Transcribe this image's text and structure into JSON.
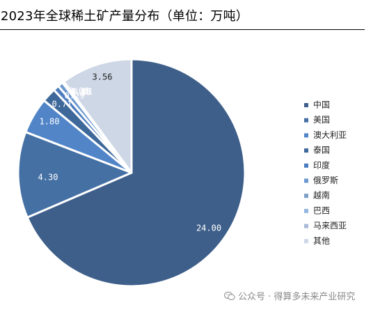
{
  "title": "2023年全球稀土矿产量分布（单位：万吨）",
  "watermark": "公众号 · 得算多未来产业研究",
  "watermark_icon": "wechat-icon",
  "chart_data": {
    "type": "pie",
    "title": "2023年全球稀土矿产量分布（单位：万吨）",
    "unit": "万吨",
    "start_angle_deg": 0,
    "direction": "clockwise",
    "legend_position": "right",
    "slices": [
      {
        "name": "中国",
        "value": 24.0,
        "label": "24.00",
        "color": "#3e5f8a"
      },
      {
        "name": "美国",
        "value": 4.3,
        "label": "4.30",
        "color": "#4470a4"
      },
      {
        "name": "澳大利亚",
        "value": 1.8,
        "label": "1.80",
        "color": "#5185c8"
      },
      {
        "name": "泰国",
        "value": 0.71,
        "label": "0.71",
        "color": "#3f689a"
      },
      {
        "name": "印度",
        "value": 0.29,
        "label": "0.29",
        "color": "#4d7dbf"
      },
      {
        "name": "俄罗斯",
        "value": 0.26,
        "label": "0.26",
        "color": "#6b98cf"
      },
      {
        "name": "越南",
        "value": 0.06,
        "label": "0.06",
        "color": "#7e9ec6"
      },
      {
        "name": "巴西",
        "value": 0.02,
        "label": "0.02",
        "color": "#95b6de"
      },
      {
        "name": "马来西亚",
        "value": 0.01,
        "label": "0.01",
        "color": "#a8bcd8"
      },
      {
        "name": "其他",
        "value": 3.56,
        "label": "3.56",
        "color": "#ced7e6"
      }
    ]
  }
}
